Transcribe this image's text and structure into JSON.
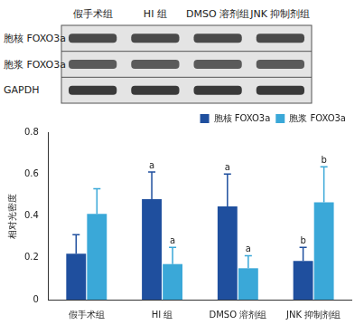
{
  "blot": {
    "groups": [
      "假手术组",
      "HI 组",
      "DMSO 溶剂组",
      "JNK 抑制剂组"
    ],
    "rows": [
      "胞核 FOXO3a",
      "胞浆 FOXO3a",
      "GAPDH"
    ]
  },
  "chart_data": {
    "type": "bar",
    "y_label": "相对光密度",
    "categories": [
      "假手术组",
      "HI 组",
      "DMSO 溶剂组",
      "JNK 抑制剂组"
    ],
    "series": [
      {
        "name": "胞核 FOXO3a",
        "color": "#1f4f9e",
        "values": [
          0.22,
          0.48,
          0.445,
          0.185
        ],
        "errors": [
          0.09,
          0.13,
          0.155,
          0.065
        ],
        "annotations": [
          null,
          "a",
          "a",
          "b"
        ]
      },
      {
        "name": "胞浆 FOXO3a",
        "color": "#3aa8d8",
        "values": [
          0.41,
          0.17,
          0.15,
          0.465
        ],
        "errors": [
          0.12,
          0.08,
          0.06,
          0.17
        ],
        "annotations": [
          null,
          "a",
          "a",
          "b"
        ]
      }
    ],
    "ylim": [
      0,
      0.8
    ],
    "yticks": [
      0,
      0.2,
      0.4,
      0.6,
      0.8
    ],
    "grid": false,
    "legend": "upper right"
  }
}
